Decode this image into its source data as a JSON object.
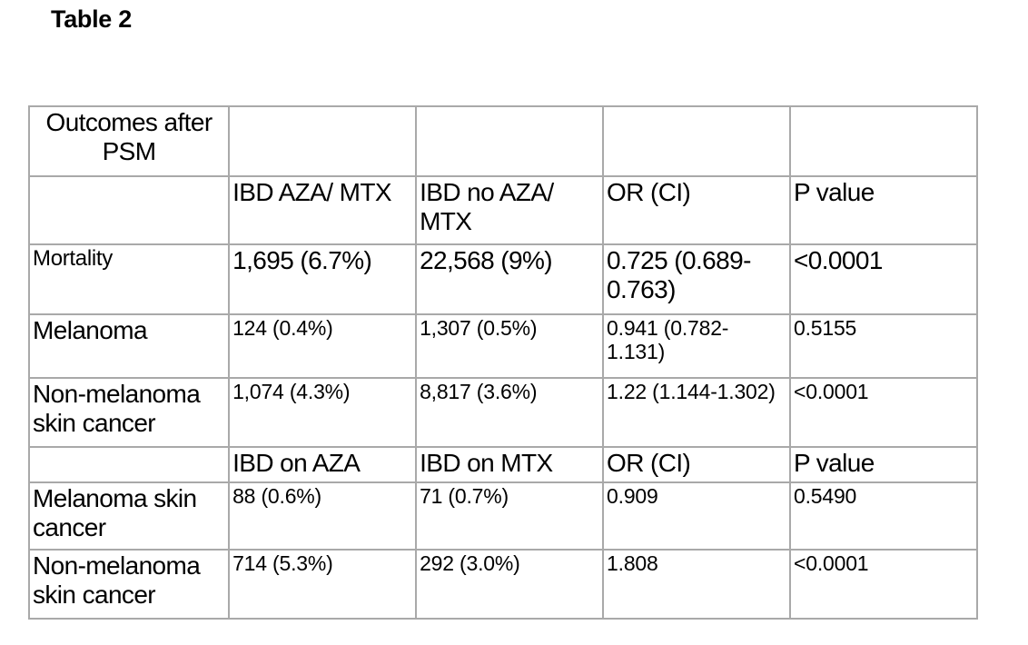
{
  "title": "Table 2",
  "table": {
    "corner_label": "Outcomes after PSM",
    "header1": {
      "col1": "IBD AZA/ MTX",
      "col2": "IBD no AZA/ MTX",
      "col3": "OR (CI)",
      "col4": "P value"
    },
    "rows1": [
      {
        "label": "Mortality",
        "a": "1,695 (6.7%)",
        "b": "22,568 (9%)",
        "or": "0.725 (0.689-0.763)",
        "p": "<0.0001"
      },
      {
        "label": "Melanoma",
        "a": "124 (0.4%)",
        "b": "1,307 (0.5%)",
        "or": "0.941 (0.782-1.131)",
        "p": "0.5155"
      },
      {
        "label": "Non-melanoma skin cancer",
        "a": "1,074 (4.3%)",
        "b": "8,817 (3.6%)",
        "or": "1.22 (1.144-1.302)",
        "p": "<0.0001"
      }
    ],
    "header2": {
      "col1": "IBD on AZA",
      "col2": "IBD on MTX",
      "col3": "OR (CI)",
      "col4": "P value"
    },
    "rows2": [
      {
        "label": "Melanoma skin cancer",
        "a": "88 (0.6%)",
        "b": "71 (0.7%)",
        "or": "0.909",
        "p": "0.5490"
      },
      {
        "label": "Non-melanoma skin cancer",
        "a": "714 (5.3%)",
        "b": "292 (3.0%)",
        "or": "1.808",
        "p": "<0.0001"
      }
    ]
  }
}
